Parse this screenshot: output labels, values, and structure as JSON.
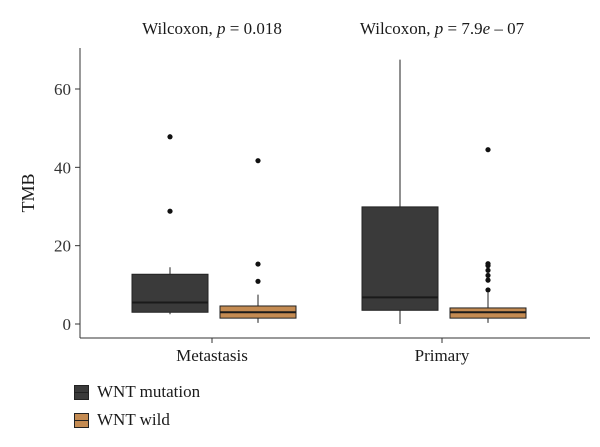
{
  "chart_data": {
    "type": "box",
    "ylabel": "TMB",
    "ylim": [
      0,
      70
    ],
    "yticks": [
      0,
      20,
      40,
      60
    ],
    "categories": [
      "Metastasis",
      "Primary"
    ],
    "annotations": [
      {
        "category": "Metastasis",
        "prefix": "Wilcoxon, ",
        "p_label": "p",
        "value_text": " = 0.018"
      },
      {
        "category": "Primary",
        "prefix": "Wilcoxon, ",
        "p_label": "p",
        "value_text": " = 7.9",
        "e_label": "e",
        "suffix": " – 07"
      }
    ],
    "series": [
      {
        "name": "WNT mutation",
        "color": "#3a3a3a",
        "boxes": [
          {
            "category": "Metastasis",
            "whisker_low": 2.5,
            "q1": 3.0,
            "median": 5.5,
            "q3": 12.7,
            "whisker_high": 14.5,
            "outliers": [
              28.8,
              47.8
            ]
          },
          {
            "category": "Primary",
            "whisker_low": 0.0,
            "q1": 3.5,
            "median": 6.8,
            "q3": 29.9,
            "whisker_high": 67.5,
            "outliers": []
          }
        ]
      },
      {
        "name": "WNT wild",
        "color": "#c48b52",
        "boxes": [
          {
            "category": "Metastasis",
            "whisker_low": 0.3,
            "q1": 1.5,
            "median": 3.0,
            "q3": 4.6,
            "whisker_high": 7.5,
            "outliers": [
              10.9,
              15.3,
              41.7
            ]
          },
          {
            "category": "Primary",
            "whisker_low": 0.3,
            "q1": 1.5,
            "median": 3.0,
            "q3": 4.1,
            "whisker_high": 8.0,
            "outliers": [
              8.7,
              11.2,
              12.4,
              13.7,
              14.9,
              15.4,
              44.5
            ]
          }
        ]
      }
    ],
    "legend_position": "bottom-left"
  }
}
